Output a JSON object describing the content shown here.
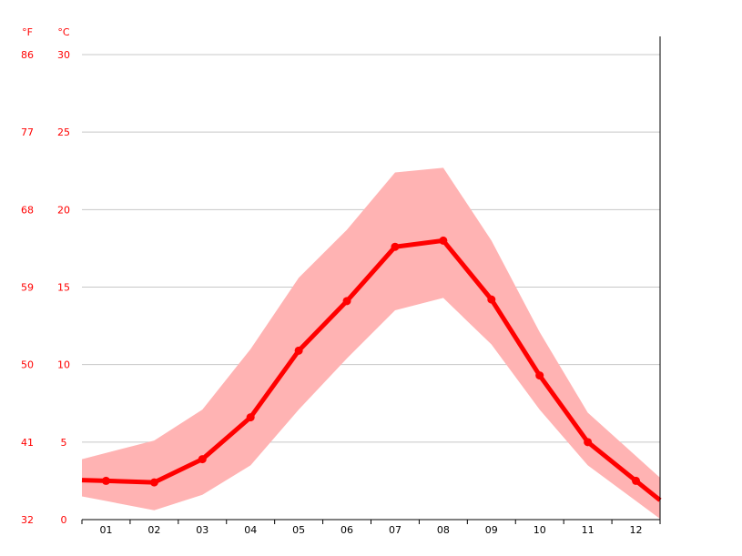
{
  "chart_data": {
    "type": "line",
    "categories": [
      "01",
      "02",
      "03",
      "04",
      "05",
      "06",
      "07",
      "08",
      "09",
      "10",
      "11",
      "12"
    ],
    "series": [
      {
        "role": "average",
        "values": [
          2.5,
          2.4,
          3.9,
          6.6,
          10.9,
          14.1,
          17.6,
          18.0,
          14.2,
          9.3,
          5.0,
          2.5
        ]
      },
      {
        "role": "band-high",
        "values": [
          4.3,
          5.1,
          7.1,
          11.0,
          15.6,
          18.7,
          22.4,
          22.7,
          18.0,
          12.1,
          6.9,
          4.1
        ]
      },
      {
        "role": "band-low",
        "values": [
          1.2,
          0.6,
          1.6,
          3.5,
          7.1,
          10.4,
          13.5,
          14.3,
          11.3,
          7.1,
          3.5,
          1.2
        ]
      }
    ],
    "y_celsius": {
      "unit": "°C",
      "ticks": [
        30,
        25,
        20,
        15,
        10,
        5,
        0
      ]
    },
    "y_fahrenheit": {
      "unit": "°F",
      "ticks": [
        86,
        77,
        68,
        59,
        50,
        41,
        32
      ]
    },
    "ylim": [
      0,
      30
    ],
    "grid": true,
    "colors": {
      "line": "#ff0000",
      "band": "#ffb3b3",
      "text": "#ff0000",
      "grid": "#c8c8c8",
      "axis": "#000000"
    }
  }
}
